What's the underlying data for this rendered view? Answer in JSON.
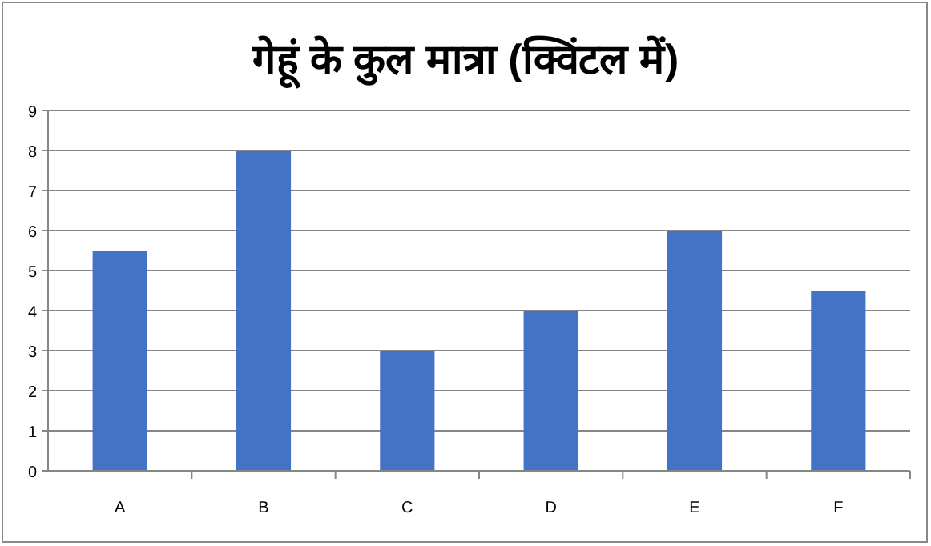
{
  "chart_data": {
    "type": "bar",
    "title": "गेहूं के कुल मात्रा (क्विंटल में)",
    "categories": [
      "A",
      "B",
      "C",
      "D",
      "E",
      "F"
    ],
    "values": [
      5.5,
      8,
      3,
      4,
      6,
      4.5
    ],
    "color": "#4472c4",
    "ylim": [
      0,
      9
    ],
    "yticks": [
      0,
      1,
      2,
      3,
      4,
      5,
      6,
      7,
      8,
      9
    ],
    "grid": "y"
  }
}
